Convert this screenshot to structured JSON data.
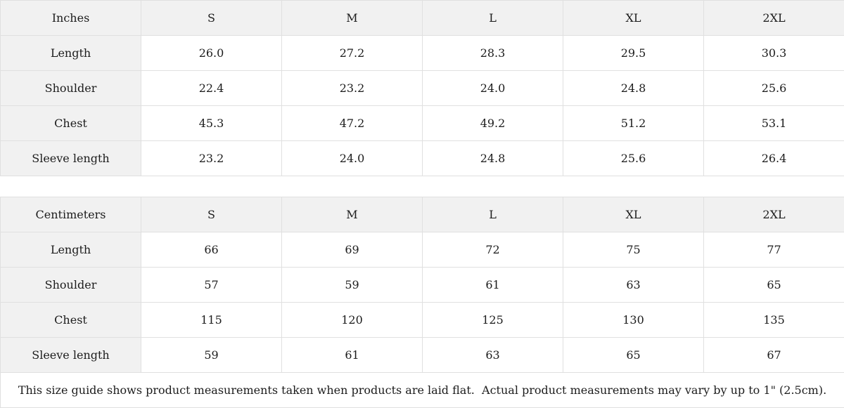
{
  "colors": {
    "header_bg": "#f1f1f1",
    "cell_bg": "#ffffff",
    "border": "#e0e0e0",
    "text": "#1c1c1c"
  },
  "tables": [
    {
      "unit_label": "Inches",
      "sizes": [
        "S",
        "M",
        "L",
        "XL",
        "2XL"
      ],
      "rows": [
        {
          "label": "Length",
          "values": [
            "26.0",
            "27.2",
            "28.3",
            "29.5",
            "30.3"
          ]
        },
        {
          "label": "Shoulder",
          "values": [
            "22.4",
            "23.2",
            "24.0",
            "24.8",
            "25.6"
          ]
        },
        {
          "label": "Chest",
          "values": [
            "45.3",
            "47.2",
            "49.2",
            "51.2",
            "53.1"
          ]
        },
        {
          "label": "Sleeve length",
          "values": [
            "23.2",
            "24.0",
            "24.8",
            "25.6",
            "26.4"
          ]
        }
      ]
    },
    {
      "unit_label": "Centimeters",
      "sizes": [
        "S",
        "M",
        "L",
        "XL",
        "2XL"
      ],
      "rows": [
        {
          "label": "Length",
          "values": [
            "66",
            "69",
            "72",
            "75",
            "77"
          ]
        },
        {
          "label": "Shoulder",
          "values": [
            "57",
            "59",
            "61",
            "63",
            "65"
          ]
        },
        {
          "label": "Chest",
          "values": [
            "115",
            "120",
            "125",
            "130",
            "135"
          ]
        },
        {
          "label": "Sleeve length",
          "values": [
            "59",
            "61",
            "63",
            "65",
            "67"
          ]
        }
      ]
    }
  ],
  "footer": {
    "note": "This size guide shows product measurements taken when products are laid flat.  Actual product measurements may vary by up to 1\" (2.5cm)."
  }
}
